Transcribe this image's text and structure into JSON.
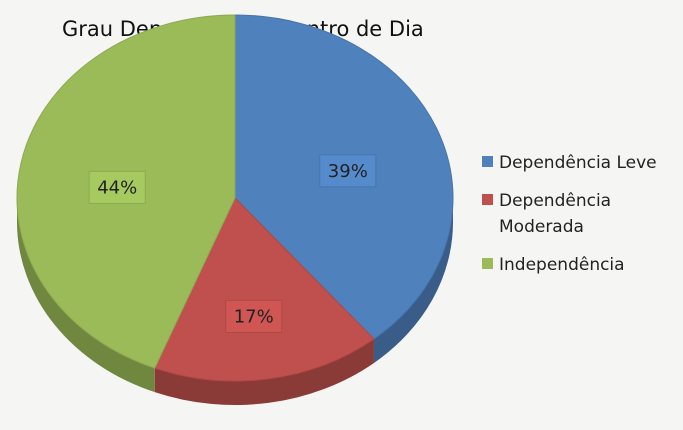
{
  "chart_data": {
    "type": "pie",
    "title": "Grau Dependência - Centro de Dia",
    "categories": [
      "Dependência Leve",
      "Dependência Moderada",
      "Independência"
    ],
    "values": [
      39,
      17,
      44
    ],
    "value_labels": [
      "39%",
      "17%",
      "44%"
    ],
    "colors": [
      "#4f81bd",
      "#c0504d",
      "#9bbb59"
    ],
    "legend": "right"
  }
}
